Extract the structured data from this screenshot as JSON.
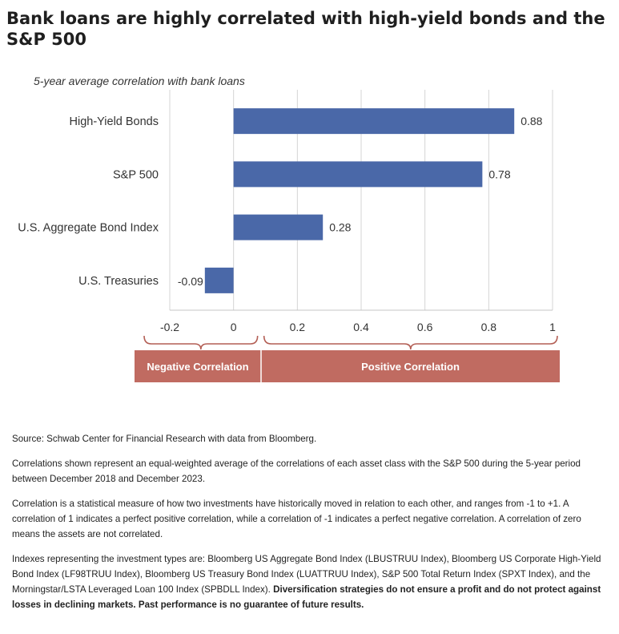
{
  "title": "Bank loans are highly correlated with high-yield bonds and the S&P 500",
  "chart_data": {
    "type": "bar",
    "orientation": "horizontal",
    "subtitle": "5-year average correlation with bank loans",
    "categories": [
      "High-Yield Bonds",
      "S&P 500",
      "U.S. Aggregate Bond Index",
      "U.S. Treasuries"
    ],
    "values": [
      0.88,
      0.78,
      0.28,
      -0.09
    ],
    "data_labels": [
      "0.88",
      "0.78",
      "0.28",
      "-0.09"
    ],
    "xlim": [
      -0.2,
      1
    ],
    "xticks": [
      -0.2,
      0,
      0.2,
      0.4,
      0.6,
      0.8,
      1
    ],
    "xtick_labels": [
      "-0.2",
      "0",
      "0.2",
      "0.4",
      "0.6",
      "0.8",
      "1"
    ],
    "grid": true,
    "bar_color": "#4a68a8",
    "bands": [
      {
        "label": "Negative Correlation",
        "from": -0.2,
        "to": 0
      },
      {
        "label": "Positive Correlation",
        "from": 0,
        "to": 1
      }
    ],
    "band_color": "#c06b61",
    "bracket_color": "#b35f55"
  },
  "notes": {
    "source": "Source: Schwab Center for Financial Research with data from Bloomberg.",
    "correlations": "Correlations shown represent an equal-weighted average of the correlations of each asset class with the S&P 500 during the 5-year period between December 2018 and December 2023.",
    "definition": "Correlation is a statistical measure of how two investments have historically moved in relation to each other, and ranges from -1 to +1. A correlation of 1 indicates a perfect positive correlation, while a correlation of -1 indicates a perfect negative correlation. A correlation of zero means the assets are not correlated.",
    "indexes": "Indexes representing the investment types are: Bloomberg US Aggregate Bond Index (LBUSTRUU Index), Bloomberg US Corporate High-Yield Bond Index (LF98TRUU Index), Bloomberg US Treasury Bond Index (LUATTRUU Index), S&P 500 Total Return Index (SPXT Index), and the Morningstar/LSTA Leveraged Loan 100 Index (SPBDLL Index).",
    "disclaimer": "Diversification strategies do not ensure a profit and do not protect against losses in declining markets. Past performance is no guarantee of future results."
  }
}
